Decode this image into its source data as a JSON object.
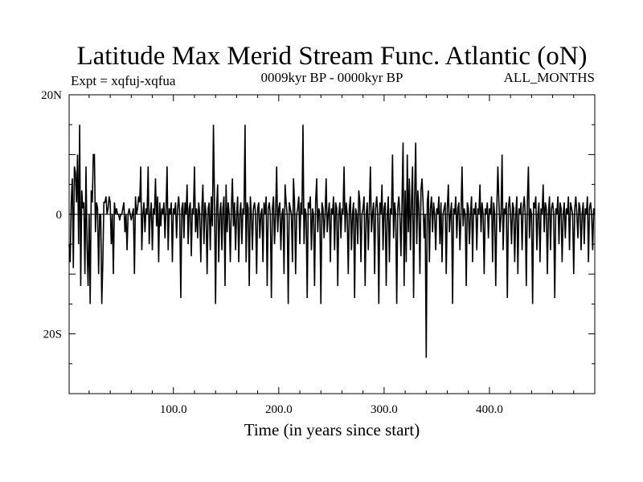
{
  "chart_data": {
    "type": "line",
    "title": "Latitude Max Merid Stream Func. Atlantic (oN)",
    "subtitle_left": "Expt = xqfuj-xqfua",
    "subtitle_center": "0009kyr BP - 0000kyr BP",
    "subtitle_right": "ALL_MONTHS",
    "xlabel": "Time (in years since start)",
    "ylabel": "",
    "xlim": [
      1,
      500
    ],
    "ylim": [
      -30,
      20
    ],
    "x_ticks": [
      {
        "value": 100,
        "label": "100.0"
      },
      {
        "value": 200,
        "label": "200.0"
      },
      {
        "value": 300,
        "label": "300.0"
      },
      {
        "value": 400,
        "label": "400.0"
      }
    ],
    "y_ticks": [
      {
        "value": 20,
        "label": "20N"
      },
      {
        "value": 0,
        "label": "0"
      },
      {
        "value": -20,
        "label": "20S"
      }
    ],
    "grid": false,
    "line_color": "#000000",
    "series": [
      {
        "x_start": 1,
        "x_step": 1,
        "values": [
          -5,
          -8,
          2,
          6,
          -9,
          8,
          7,
          2,
          10,
          -5,
          15,
          -12,
          4,
          1,
          2,
          -10,
          8,
          -5,
          -12,
          0,
          -15,
          4,
          2,
          10,
          10,
          -3,
          2,
          1,
          -10,
          0,
          0,
          -15,
          -8,
          2,
          2,
          3,
          0,
          1,
          3,
          2,
          -5,
          0,
          -10,
          2,
          0,
          1,
          0,
          0,
          -1,
          0,
          0,
          1,
          2,
          -3,
          0,
          -6,
          0,
          1,
          0,
          -1,
          0,
          1,
          -10,
          3,
          0,
          1,
          3,
          2,
          8,
          -6,
          0,
          2,
          -3,
          1,
          0,
          8,
          -5,
          0,
          2,
          -6,
          1,
          0,
          6,
          -2,
          3,
          -8,
          2,
          -2,
          1,
          0,
          2,
          -4,
          1,
          8,
          -6,
          1,
          0,
          2,
          -8,
          1,
          0,
          2,
          -4,
          1,
          3,
          0,
          -14,
          1,
          2,
          -4,
          2,
          0,
          5,
          -5,
          1,
          2,
          -7,
          1,
          0,
          8,
          -3,
          1,
          -4,
          2,
          0,
          -8,
          1,
          5,
          -5,
          2,
          0,
          -10,
          1,
          2,
          -6,
          3,
          -2,
          15,
          2,
          -15,
          1,
          5,
          -8,
          0,
          2,
          -6,
          1,
          3,
          -12,
          5,
          -3,
          2,
          0,
          -8,
          1,
          6,
          -2,
          2,
          -6,
          0,
          3,
          -8,
          0,
          2,
          -5,
          1,
          0,
          15,
          -8,
          2,
          1,
          -12,
          3,
          0,
          -6,
          1,
          2,
          0,
          -10,
          1,
          2,
          -4,
          0,
          1,
          -8,
          2,
          0,
          3,
          -12,
          1,
          2,
          0,
          -14,
          1,
          3,
          -5,
          0,
          8,
          -3,
          1,
          2,
          -6,
          0,
          1,
          -10,
          5,
          2,
          0,
          -15,
          2,
          1,
          0,
          -8,
          6,
          2,
          -10,
          0,
          1,
          3,
          -5,
          2,
          0,
          15,
          -5,
          1,
          0,
          -14,
          2,
          1,
          3,
          -6,
          1,
          0,
          -12,
          2,
          6,
          -3,
          1,
          0,
          -15,
          2,
          1,
          -4,
          0,
          6,
          -3,
          0,
          2,
          -8,
          1,
          0,
          3,
          -6,
          2,
          1,
          -12,
          0,
          2,
          -4,
          1,
          0,
          8,
          -3,
          2,
          0,
          -10,
          1,
          3,
          -6,
          0,
          2,
          -14,
          1,
          0,
          -5,
          4,
          2,
          -8,
          0,
          1,
          3,
          -12,
          0,
          2,
          -6,
          1,
          8,
          -3,
          0,
          2,
          -10,
          1,
          3,
          0,
          -15,
          2,
          0,
          5,
          -6,
          1,
          2,
          -12,
          0,
          3,
          -8,
          1,
          0,
          10,
          -4,
          2,
          0,
          -15,
          1,
          3,
          0,
          -7,
          2,
          12,
          -12,
          4,
          -8,
          10,
          -3,
          6,
          -6,
          2,
          8,
          -14,
          3,
          12,
          -5,
          4,
          1,
          -10,
          4,
          6,
          2,
          -4,
          0,
          -24,
          2,
          4,
          -8,
          1,
          3,
          -3,
          2,
          0,
          -6,
          1,
          0,
          3,
          -5,
          2,
          -8,
          0,
          1,
          2,
          -10,
          1,
          5,
          -3,
          0,
          2,
          -15,
          1,
          0,
          3,
          -4,
          1,
          2,
          -6,
          0,
          8,
          -2,
          1,
          0,
          -12,
          2,
          1,
          -5,
          0,
          3,
          -8,
          1,
          0,
          2,
          -6,
          1,
          0,
          5,
          -3,
          2,
          0,
          -10,
          1,
          0,
          2,
          -4,
          1,
          0,
          3,
          -8,
          2,
          0,
          -12,
          1,
          8,
          2,
          -3,
          0,
          10,
          -6,
          1,
          0,
          2,
          -14,
          1,
          3,
          0,
          -5,
          2,
          1,
          -8,
          0,
          3,
          -10,
          1,
          0,
          2,
          -6,
          1,
          3,
          0,
          -12,
          2,
          8,
          -4,
          1,
          0,
          -15,
          2,
          1,
          3,
          -6,
          0,
          2,
          -8,
          1,
          0,
          5,
          -3,
          2,
          1,
          -10,
          0,
          3,
          -6,
          1,
          2,
          0,
          -14,
          1,
          0,
          3,
          -5,
          2,
          1,
          -8,
          0,
          2,
          -4,
          1,
          0,
          3,
          -6,
          2,
          1,
          0,
          -10,
          1,
          3,
          0,
          -4,
          2,
          1,
          -6,
          0,
          2,
          -5,
          1,
          0,
          3,
          -8,
          1,
          2,
          0,
          -6,
          1,
          0
        ]
      }
    ]
  }
}
